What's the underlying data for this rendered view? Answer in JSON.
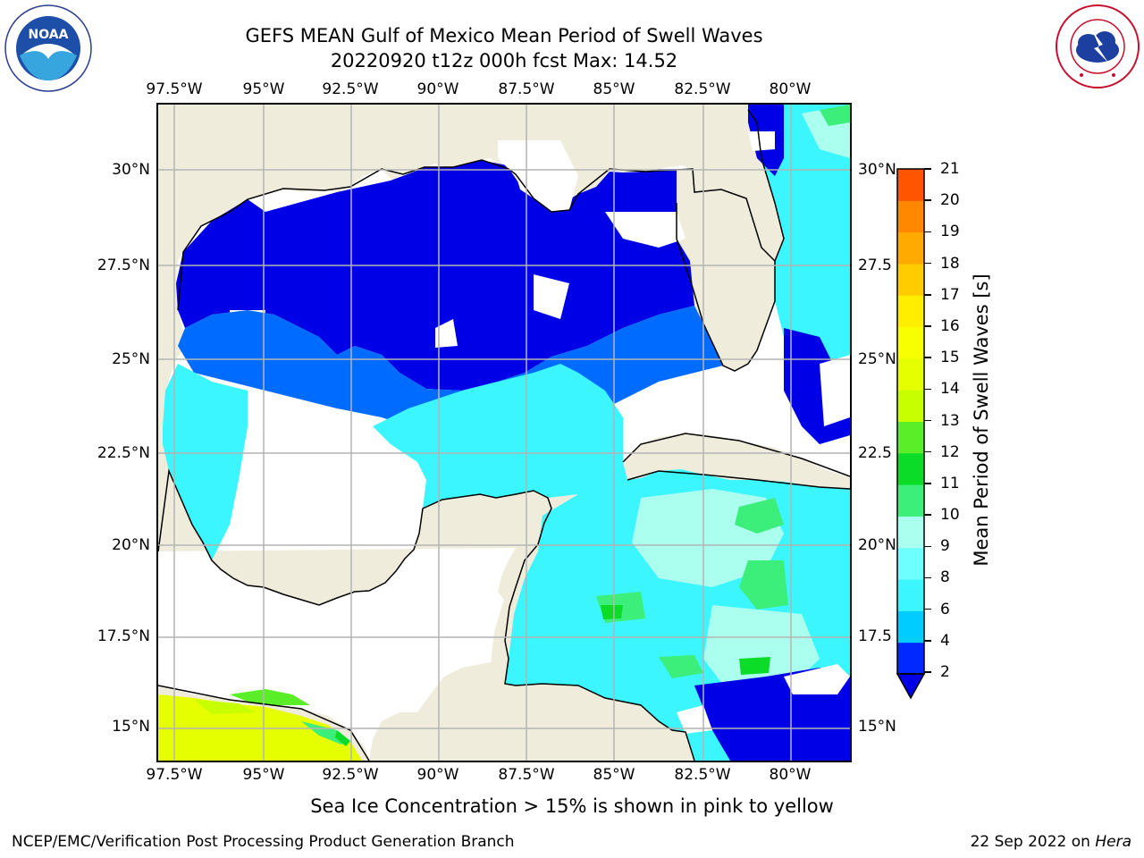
{
  "title": {
    "line1": "GEFS MEAN Gulf of Mexico Mean Period of Swell Waves",
    "line2": "20220920 t12z 000h fcst   Max: 14.52"
  },
  "map": {
    "lon_labels": [
      "97.5°W",
      "95°W",
      "92.5°W",
      "90°W",
      "87.5°W",
      "85°W",
      "82.5°W",
      "80°W"
    ],
    "lat_labels_left": [
      "30°N",
      "27.5°N",
      "25°N",
      "22.5°N",
      "20°N",
      "17.5°N",
      "15°N"
    ],
    "lat_labels_right": [
      "30°N",
      "27.5",
      "25°N",
      "22.5",
      "20°N",
      "17.5",
      "15°N"
    ],
    "land_color": "#efecdc",
    "grid_color": "#b4b4b4"
  },
  "colorbar": {
    "label": "Mean Period of Swell Waves [s]",
    "ticks": [
      "2",
      "4",
      "6",
      "8",
      "9",
      "10",
      "11",
      "12",
      "13",
      "14",
      "15",
      "16",
      "17",
      "18",
      "19",
      "20",
      "21"
    ],
    "colors": [
      "#0028ff",
      "#00ccff",
      "#3cf6ff",
      "#6effff",
      "#aaffee",
      "#3cee7a",
      "#0adc28",
      "#5aee28",
      "#c8ff00",
      "#e6ff00",
      "#f7ff00",
      "#ffee00",
      "#ffcc00",
      "#ffaa00",
      "#ff8800",
      "#ff5500",
      "#ff2a00",
      "#ff0000"
    ],
    "extend_color": "#0000e6"
  },
  "footnote": "Sea Ice Concentration > 15% is shown in pink to yellow",
  "credit": "NCEP/EMC/Verification Post Processing Product Generation Branch",
  "stamp": {
    "date": "22 Sep 2022 on",
    "host": "Hera"
  },
  "logos": {
    "left": "noaa-logo",
    "right": "nws-logo"
  }
}
